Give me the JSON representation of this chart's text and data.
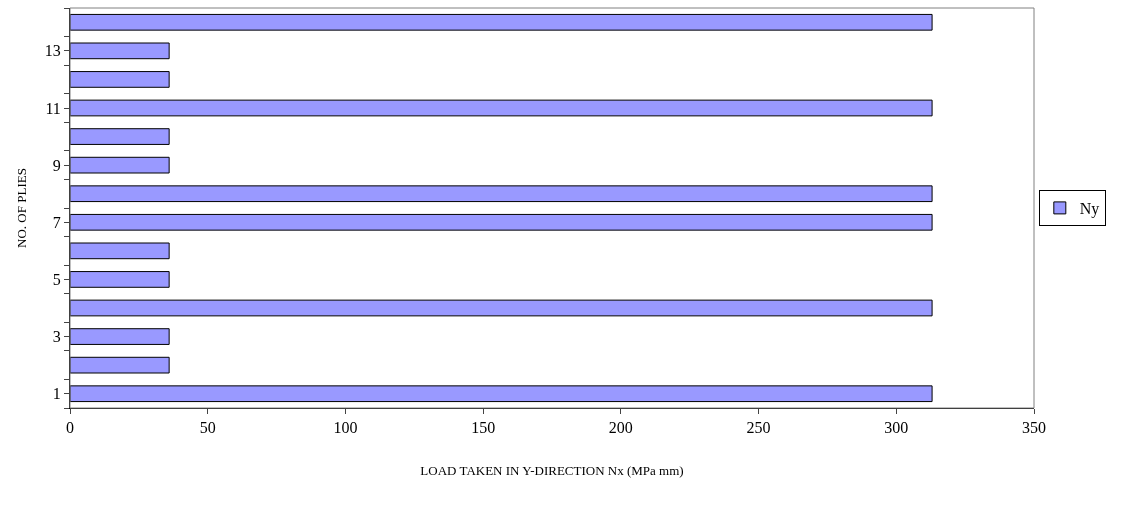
{
  "chart_data": {
    "type": "bar",
    "orientation": "horizontal",
    "xlabel": "LOAD TAKEN IN Y-DIRECTION Nx (MPa mm)",
    "ylabel": "NO. OF PLIES",
    "categories": [
      null,
      "13",
      null,
      "11",
      null,
      "9",
      null,
      "7",
      null,
      "5",
      null,
      "3",
      null,
      "1"
    ],
    "series": [
      {
        "name": "Ny",
        "color": "#9999ff",
        "values": [
          313,
          36,
          36,
          313,
          36,
          36,
          313,
          313,
          36,
          36,
          313,
          36,
          36,
          313
        ]
      }
    ],
    "xlim": [
      0,
      350
    ],
    "xticks": [
      0,
      50,
      100,
      150,
      200,
      250,
      300,
      350
    ],
    "legend": "right"
  }
}
